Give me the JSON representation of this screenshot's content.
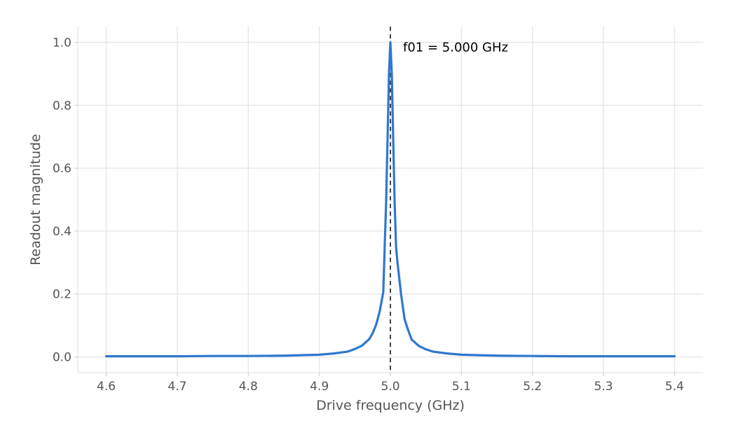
{
  "chart_data": {
    "type": "line",
    "title": "",
    "xlabel": "Drive frequency (GHz)",
    "ylabel": "Readout magnitude",
    "xlim": [
      4.56,
      5.44
    ],
    "ylim": [
      -0.05,
      1.05
    ],
    "x_ticks": [
      "4.6",
      "4.7",
      "4.8",
      "4.9",
      "5.0",
      "5.1",
      "5.2",
      "5.3",
      "5.4"
    ],
    "y_ticks": [
      "0.0",
      "0.2",
      "0.4",
      "0.6",
      "0.8",
      "1.0"
    ],
    "grid": true,
    "line_color": "#2f77d0",
    "marker_line_color": "#444444",
    "marker_x": 5.0,
    "annotation": "f01 = 5.000 GHz",
    "series": [
      {
        "x": [
          4.6,
          4.65,
          4.7,
          4.75,
          4.8,
          4.85,
          4.88,
          4.9,
          4.92,
          4.94,
          4.95,
          4.96,
          4.97,
          4.975,
          4.98,
          4.985,
          4.99,
          4.992,
          4.994,
          4.996,
          4.998,
          5.0,
          5.002,
          5.004,
          5.006,
          5.008,
          5.01,
          5.015,
          5.02,
          5.025,
          5.03,
          5.04,
          5.05,
          5.06,
          5.08,
          5.1,
          5.15,
          5.2,
          5.25,
          5.3,
          5.35,
          5.4
        ],
        "y": [
          0.002,
          0.002,
          0.002,
          0.003,
          0.003,
          0.004,
          0.006,
          0.007,
          0.011,
          0.017,
          0.025,
          0.036,
          0.056,
          0.075,
          0.103,
          0.145,
          0.206,
          0.35,
          0.49,
          0.69,
          0.9,
          1.0,
          0.9,
          0.69,
          0.49,
          0.35,
          0.3,
          0.2,
          0.12,
          0.085,
          0.055,
          0.035,
          0.024,
          0.017,
          0.011,
          0.007,
          0.004,
          0.003,
          0.002,
          0.002,
          0.002,
          0.002
        ]
      }
    ]
  }
}
